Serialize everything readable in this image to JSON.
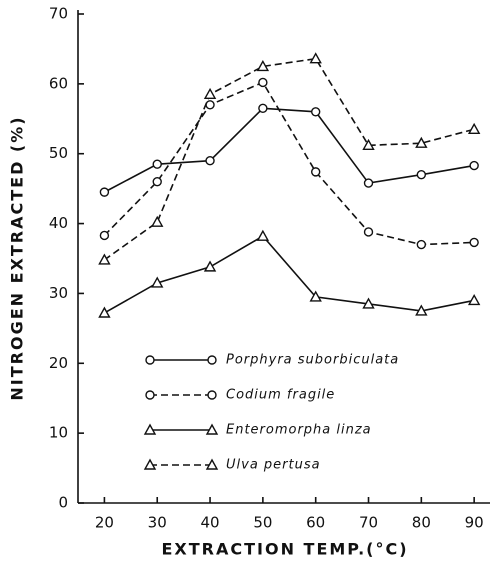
{
  "chart_data": {
    "type": "line",
    "xlabel": "EXTRACTION TEMP.(°C)",
    "ylabel": "NITROGEN EXTRACTED (%)",
    "x": [
      20,
      30,
      40,
      50,
      60,
      70,
      80,
      90
    ],
    "xlim": [
      15,
      93
    ],
    "xticks": [
      20,
      30,
      40,
      50,
      60,
      70,
      80,
      90
    ],
    "ylim": [
      0,
      70
    ],
    "yticks": [
      0,
      10,
      20,
      30,
      40,
      50,
      60,
      70
    ],
    "series": [
      {
        "name": "Porphyra suborbiculata",
        "color": "#111111",
        "marker": "circle",
        "dashed": false,
        "values": [
          44.5,
          48.5,
          49,
          56.5,
          56,
          45.8,
          47,
          48.3
        ]
      },
      {
        "name": "Codium fragile",
        "color": "#111111",
        "marker": "circle",
        "dashed": true,
        "values": [
          38.3,
          46,
          57,
          60.2,
          47.4,
          38.8,
          37,
          37.3
        ]
      },
      {
        "name": "Enteromorpha linza",
        "color": "#111111",
        "marker": "triangle",
        "dashed": false,
        "values": [
          27.2,
          31.5,
          33.8,
          38.2,
          29.5,
          28.5,
          27.5,
          29
        ]
      },
      {
        "name": "Ulva pertusa",
        "color": "#111111",
        "marker": "triangle",
        "dashed": true,
        "values": [
          34.8,
          40.2,
          58.5,
          62.5,
          63.6,
          51.2,
          51.5,
          53.5
        ]
      }
    ]
  }
}
